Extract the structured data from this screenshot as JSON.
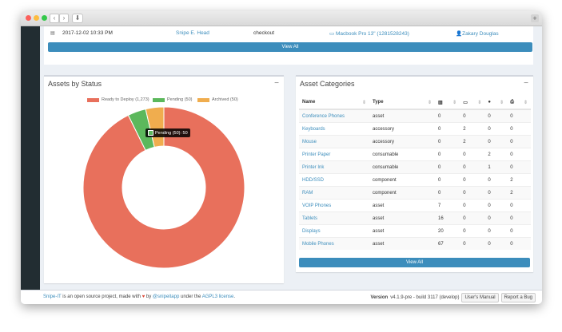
{
  "colors": {
    "ready": "#e8705c",
    "pending": "#5cb85c",
    "archived": "#f0ad4e",
    "primary": "#3c8dbc"
  },
  "top_row": {
    "date": "2017-12-02 10:33 PM",
    "admin": "Snipe E. Head",
    "action": "checkout",
    "item": "Macbook Pro 13\" (1281528243)",
    "target": "Zakary Douglas",
    "view_all": "View All"
  },
  "status_box": {
    "title": "Assets by Status",
    "collapse": "−",
    "tooltip": "Pending (50): 50"
  },
  "chart_data": {
    "type": "pie",
    "donut": true,
    "title": "",
    "legend_position": "top",
    "categories": [
      "Ready to Deploy (1,273)",
      "Pending (50)",
      "Archived (50)"
    ],
    "values": [
      1273,
      50,
      50
    ],
    "colors": [
      "#e8705c",
      "#5cb85c",
      "#f0ad4e"
    ]
  },
  "categories_box": {
    "title": "Asset Categories",
    "collapse": "−",
    "headers": [
      "Name",
      "Type"
    ],
    "icon_headers": [
      "barcode-icon",
      "keyboard-icon",
      "tint-icon",
      "print-icon"
    ],
    "rows": [
      {
        "name": "Conference Phones",
        "type": "asset",
        "c1": "0",
        "c2": "0",
        "c3": "0",
        "c4": "0"
      },
      {
        "name": "Keyboards",
        "type": "accessory",
        "c1": "0",
        "c2": "2",
        "c3": "0",
        "c4": "0"
      },
      {
        "name": "Mouse",
        "type": "accessory",
        "c1": "0",
        "c2": "2",
        "c3": "0",
        "c4": "0"
      },
      {
        "name": "Printer Paper",
        "type": "consumable",
        "c1": "0",
        "c2": "0",
        "c3": "2",
        "c4": "0"
      },
      {
        "name": "Printer Ink",
        "type": "consumable",
        "c1": "0",
        "c2": "0",
        "c3": "1",
        "c4": "0"
      },
      {
        "name": "HDD/SSD",
        "type": "component",
        "c1": "0",
        "c2": "0",
        "c3": "0",
        "c4": "2"
      },
      {
        "name": "RAM",
        "type": "component",
        "c1": "0",
        "c2": "0",
        "c3": "0",
        "c4": "2"
      },
      {
        "name": "VOIP Phones",
        "type": "asset",
        "c1": "7",
        "c2": "0",
        "c3": "0",
        "c4": "0"
      },
      {
        "name": "Tablets",
        "type": "asset",
        "c1": "16",
        "c2": "0",
        "c3": "0",
        "c4": "0"
      },
      {
        "name": "Displays",
        "type": "asset",
        "c1": "20",
        "c2": "0",
        "c3": "0",
        "c4": "0"
      },
      {
        "name": "Mobile Phones",
        "type": "asset",
        "c1": "67",
        "c2": "0",
        "c3": "0",
        "c4": "0"
      }
    ],
    "view_all": "View All"
  },
  "footer": {
    "app": "Snipe-IT",
    "text1": " is an open source project, made with ",
    "text2": " by ",
    "handle": "@snipeitapp",
    "text3": " under the ",
    "license": "AGPL3 license",
    "text4": ".",
    "version_label": "Version",
    "version": "v4.1.9-pre - build 3117 (develop)",
    "manual": "User's Manual",
    "report": "Report a Bug"
  }
}
